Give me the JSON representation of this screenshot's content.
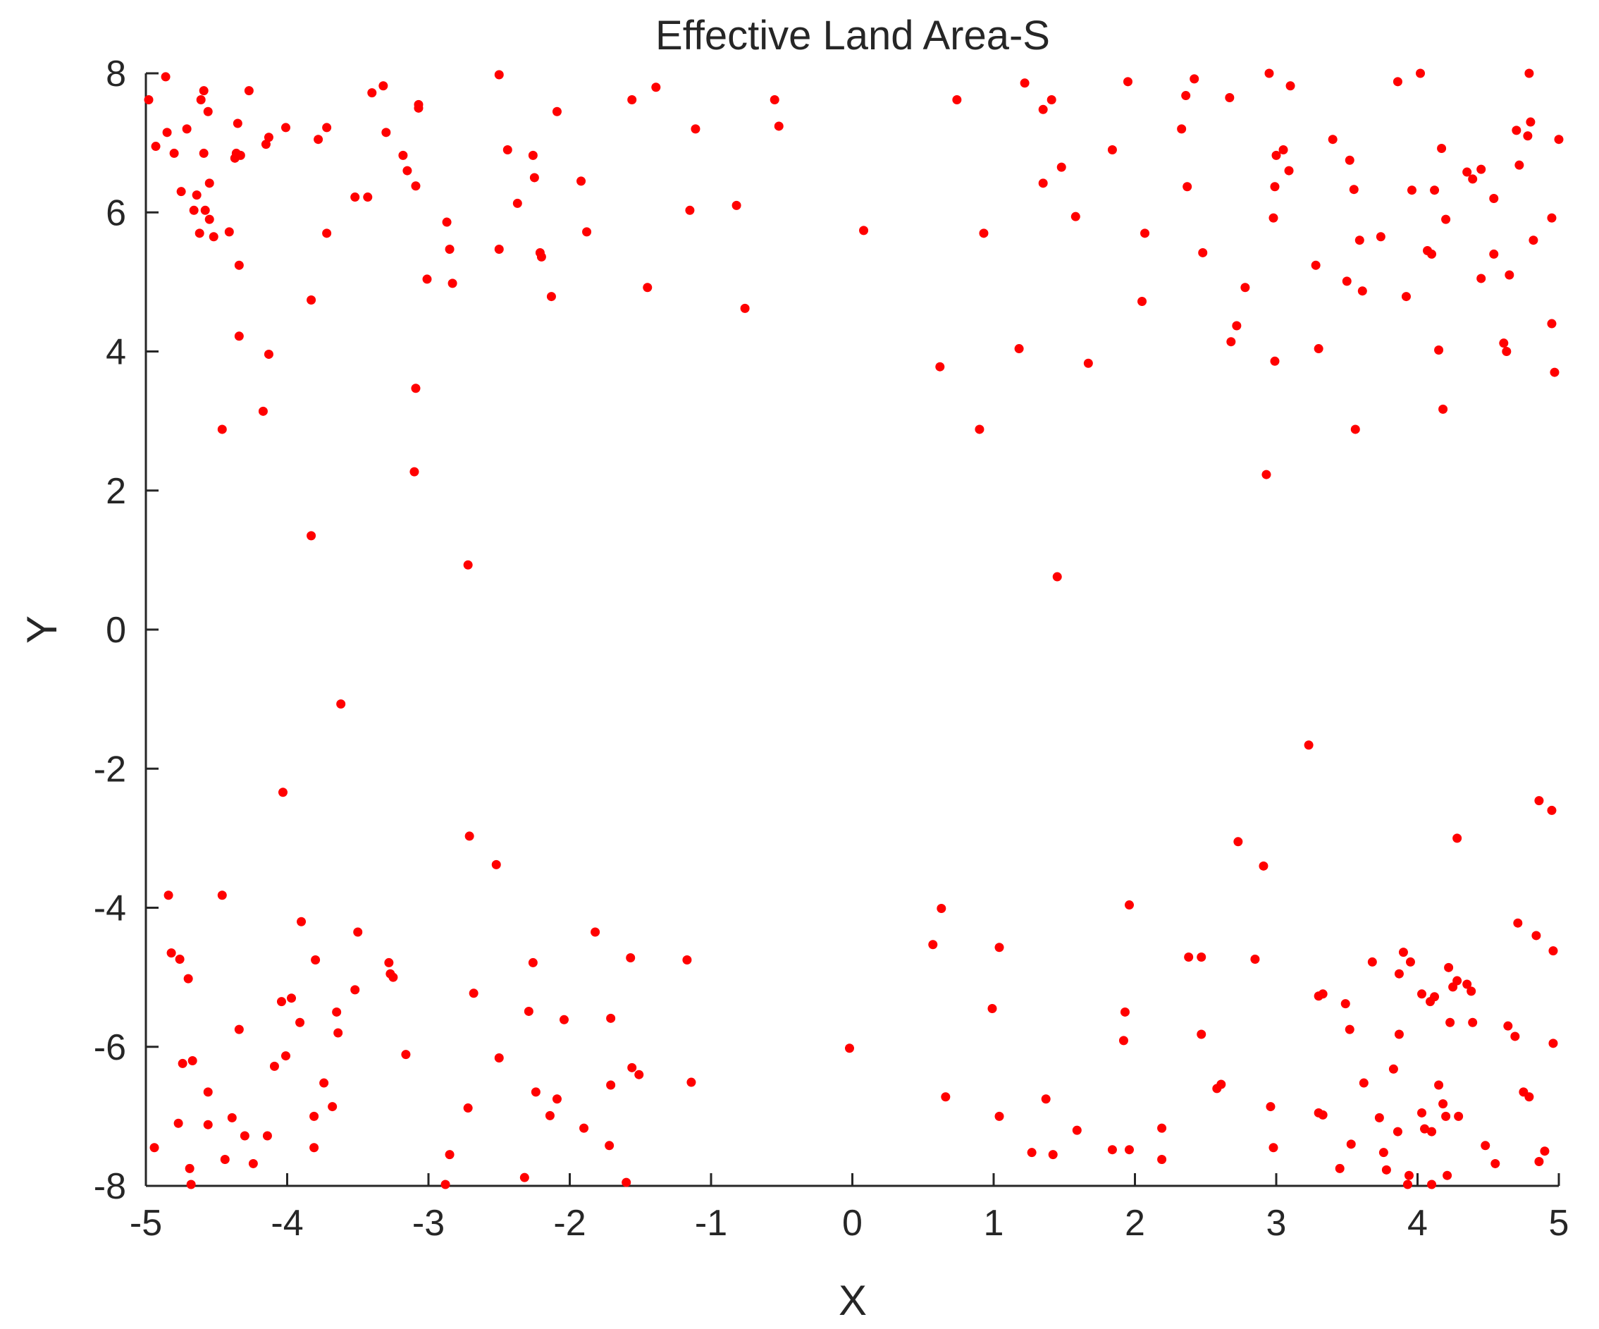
{
  "chart_data": {
    "type": "scatter",
    "title": "Effective Land Area-S",
    "xlabel": "X",
    "ylabel": "Y",
    "xlim": [
      -5,
      5
    ],
    "ylim": [
      -8,
      8
    ],
    "xticks": [
      -5,
      -4,
      -3,
      -2,
      -1,
      0,
      1,
      2,
      3,
      4,
      5
    ],
    "yticks": [
      -8,
      -6,
      -4,
      -2,
      0,
      2,
      4,
      6,
      8
    ],
    "grid": false,
    "legend": "none",
    "marker_color": "#ff0000",
    "series": [
      {
        "points": [
          [
            -4.98,
            7.62
          ],
          [
            -4.93,
            6.95
          ],
          [
            -4.86,
            7.95
          ],
          [
            -4.85,
            7.15
          ],
          [
            -4.8,
            6.85
          ],
          [
            -4.75,
            6.3
          ],
          [
            -4.71,
            7.2
          ],
          [
            -4.66,
            6.03
          ],
          [
            -4.64,
            6.25
          ],
          [
            -4.62,
            5.7
          ],
          [
            -4.61,
            7.62
          ],
          [
            -4.59,
            7.75
          ],
          [
            -4.59,
            6.85
          ],
          [
            -4.58,
            6.03
          ],
          [
            -4.56,
            7.45
          ],
          [
            -4.55,
            5.9
          ],
          [
            -4.55,
            6.42
          ],
          [
            -4.52,
            5.65
          ],
          [
            -4.46,
            2.88
          ],
          [
            -4.41,
            5.72
          ],
          [
            -4.37,
            6.78
          ],
          [
            -4.36,
            6.85
          ],
          [
            -4.35,
            7.28
          ],
          [
            -4.34,
            5.24
          ],
          [
            -4.34,
            4.22
          ],
          [
            -4.33,
            6.82
          ],
          [
            -4.27,
            7.75
          ],
          [
            -4.17,
            3.14
          ],
          [
            -4.15,
            6.98
          ],
          [
            -4.13,
            7.08
          ],
          [
            -4.13,
            3.96
          ],
          [
            -4.01,
            7.22
          ],
          [
            -3.83,
            4.74
          ],
          [
            -3.83,
            1.35
          ],
          [
            -3.78,
            7.05
          ],
          [
            -3.72,
            7.22
          ],
          [
            -3.72,
            5.7
          ],
          [
            -3.52,
            6.22
          ],
          [
            -3.43,
            6.22
          ],
          [
            -3.4,
            7.72
          ],
          [
            -3.32,
            7.82
          ],
          [
            -3.3,
            7.15
          ],
          [
            -3.18,
            6.82
          ],
          [
            -3.15,
            6.6
          ],
          [
            -3.09,
            6.38
          ],
          [
            -3.09,
            3.47
          ],
          [
            -3.07,
            7.5
          ],
          [
            -3.07,
            7.55
          ],
          [
            -3.1,
            2.27
          ],
          [
            -3.01,
            5.04
          ],
          [
            -2.87,
            5.86
          ],
          [
            -2.85,
            5.47
          ],
          [
            -2.83,
            4.98
          ],
          [
            -2.72,
            0.93
          ],
          [
            -2.5,
            7.98
          ],
          [
            -2.5,
            5.47
          ],
          [
            -2.44,
            6.9
          ],
          [
            -2.37,
            6.13
          ],
          [
            -2.26,
            6.82
          ],
          [
            -2.25,
            6.5
          ],
          [
            -2.21,
            5.42
          ],
          [
            -2.2,
            5.36
          ],
          [
            -2.13,
            4.79
          ],
          [
            -2.09,
            7.45
          ],
          [
            -1.92,
            6.45
          ],
          [
            -1.88,
            5.72
          ],
          [
            -1.56,
            7.62
          ],
          [
            -1.45,
            4.92
          ],
          [
            -1.39,
            7.8
          ],
          [
            -1.15,
            6.03
          ],
          [
            -1.11,
            7.2
          ],
          [
            -0.82,
            6.1
          ],
          [
            -0.76,
            4.62
          ],
          [
            -0.55,
            7.62
          ],
          [
            -0.52,
            7.24
          ],
          [
            0.08,
            5.74
          ],
          [
            0.62,
            3.78
          ],
          [
            0.74,
            7.62
          ],
          [
            0.9,
            2.88
          ],
          [
            0.93,
            5.7
          ],
          [
            1.18,
            4.04
          ],
          [
            1.22,
            7.86
          ],
          [
            1.35,
            6.42
          ],
          [
            1.35,
            7.48
          ],
          [
            1.41,
            7.62
          ],
          [
            1.45,
            0.76
          ],
          [
            1.48,
            6.65
          ],
          [
            1.58,
            5.94
          ],
          [
            1.67,
            3.83
          ],
          [
            1.84,
            6.9
          ],
          [
            1.95,
            7.88
          ],
          [
            2.05,
            4.72
          ],
          [
            2.07,
            5.7
          ],
          [
            2.33,
            7.2
          ],
          [
            2.36,
            7.68
          ],
          [
            2.37,
            6.37
          ],
          [
            2.42,
            7.92
          ],
          [
            2.48,
            5.42
          ],
          [
            2.67,
            7.65
          ],
          [
            2.68,
            4.14
          ],
          [
            2.72,
            4.37
          ],
          [
            2.78,
            4.92
          ],
          [
            2.93,
            2.23
          ],
          [
            2.95,
            8.0
          ],
          [
            2.98,
            5.92
          ],
          [
            2.99,
            6.37
          ],
          [
            2.99,
            3.86
          ],
          [
            3.0,
            6.82
          ],
          [
            3.05,
            6.9
          ],
          [
            3.09,
            6.6
          ],
          [
            3.1,
            7.82
          ],
          [
            3.28,
            5.24
          ],
          [
            3.3,
            4.04
          ],
          [
            3.4,
            7.05
          ],
          [
            3.5,
            5.01
          ],
          [
            3.52,
            6.75
          ],
          [
            3.55,
            6.33
          ],
          [
            3.56,
            2.88
          ],
          [
            3.59,
            5.6
          ],
          [
            3.61,
            4.87
          ],
          [
            3.74,
            5.65
          ],
          [
            3.86,
            7.88
          ],
          [
            3.92,
            4.79
          ],
          [
            3.96,
            6.32
          ],
          [
            4.02,
            8.0
          ],
          [
            4.07,
            5.45
          ],
          [
            4.1,
            5.4
          ],
          [
            4.12,
            6.32
          ],
          [
            4.15,
            4.02
          ],
          [
            4.17,
            6.92
          ],
          [
            4.18,
            3.17
          ],
          [
            4.2,
            5.9
          ],
          [
            4.35,
            6.58
          ],
          [
            4.39,
            6.48
          ],
          [
            4.45,
            6.62
          ],
          [
            4.45,
            5.05
          ],
          [
            4.54,
            6.2
          ],
          [
            4.54,
            5.4
          ],
          [
            4.61,
            4.12
          ],
          [
            4.63,
            4.0
          ],
          [
            4.65,
            5.1
          ],
          [
            4.7,
            7.18
          ],
          [
            4.72,
            6.68
          ],
          [
            4.78,
            7.1
          ],
          [
            4.79,
            8.0
          ],
          [
            4.8,
            7.3
          ],
          [
            4.82,
            5.6
          ],
          [
            4.95,
            5.92
          ],
          [
            4.95,
            4.4
          ],
          [
            4.97,
            3.7
          ],
          [
            5.0,
            7.05
          ],
          [
            -3.62,
            -1.07
          ],
          [
            -4.03,
            -2.34
          ],
          [
            -2.71,
            -2.97
          ],
          [
            -2.52,
            -3.38
          ],
          [
            3.23,
            -1.66
          ],
          [
            2.73,
            -3.05
          ],
          [
            2.91,
            -3.4
          ],
          [
            4.28,
            -3.0
          ],
          [
            4.86,
            -2.46
          ],
          [
            4.95,
            -2.6
          ],
          [
            -4.84,
            -3.82
          ],
          [
            -4.46,
            -3.82
          ],
          [
            -1.82,
            -4.35
          ],
          [
            -2.26,
            -4.79
          ],
          [
            -1.57,
            -4.72
          ],
          [
            -1.17,
            -4.75
          ],
          [
            -3.9,
            -4.2
          ],
          [
            -3.8,
            -4.75
          ],
          [
            -3.5,
            -4.35
          ],
          [
            -3.28,
            -4.79
          ],
          [
            -3.27,
            -4.95
          ],
          [
            -3.25,
            -5.0
          ],
          [
            -4.82,
            -4.65
          ],
          [
            -4.76,
            -4.74
          ],
          [
            -4.7,
            -5.02
          ],
          [
            -4.04,
            -5.35
          ],
          [
            -3.97,
            -5.3
          ],
          [
            -3.91,
            -5.65
          ],
          [
            -3.65,
            -5.5
          ],
          [
            -3.64,
            -5.8
          ],
          [
            -3.52,
            -5.18
          ],
          [
            -4.34,
            -5.75
          ],
          [
            -4.74,
            -6.24
          ],
          [
            -4.67,
            -6.2
          ],
          [
            -4.01,
            -6.13
          ],
          [
            -4.09,
            -6.28
          ],
          [
            -3.74,
            -6.52
          ],
          [
            -3.16,
            -6.11
          ],
          [
            -2.68,
            -5.23
          ],
          [
            -2.29,
            -5.49
          ],
          [
            -2.04,
            -5.61
          ],
          [
            -1.71,
            -5.59
          ],
          [
            -2.5,
            -6.16
          ],
          [
            -1.56,
            -6.3
          ],
          [
            -1.51,
            -6.4
          ],
          [
            -1.71,
            -6.55
          ],
          [
            -1.14,
            -6.51
          ],
          [
            -2.24,
            -6.65
          ],
          [
            -2.09,
            -6.75
          ],
          [
            -2.72,
            -6.88
          ],
          [
            -2.14,
            -6.99
          ],
          [
            -4.56,
            -6.65
          ],
          [
            -4.77,
            -7.1
          ],
          [
            -4.56,
            -7.12
          ],
          [
            -4.39,
            -7.02
          ],
          [
            -3.68,
            -6.86
          ],
          [
            -3.81,
            -7.0
          ],
          [
            -4.3,
            -7.28
          ],
          [
            -4.14,
            -7.28
          ],
          [
            -4.94,
            -7.45
          ],
          [
            -3.81,
            -7.45
          ],
          [
            -4.44,
            -7.62
          ],
          [
            -4.24,
            -7.68
          ],
          [
            -4.69,
            -7.75
          ],
          [
            -4.68,
            -7.98
          ],
          [
            -2.85,
            -7.55
          ],
          [
            -2.88,
            -7.98
          ],
          [
            -2.32,
            -7.88
          ],
          [
            -1.9,
            -7.17
          ],
          [
            -1.72,
            -7.42
          ],
          [
            -1.6,
            -7.95
          ],
          [
            -0.02,
            -6.02
          ],
          [
            0.57,
            -4.53
          ],
          [
            0.63,
            -4.01
          ],
          [
            0.66,
            -6.72
          ],
          [
            0.99,
            -5.45
          ],
          [
            1.04,
            -4.57
          ],
          [
            1.04,
            -7.0
          ],
          [
            1.27,
            -7.52
          ],
          [
            1.37,
            -6.75
          ],
          [
            1.42,
            -7.55
          ],
          [
            1.59,
            -7.2
          ],
          [
            1.84,
            -7.48
          ],
          [
            1.92,
            -5.91
          ],
          [
            1.93,
            -5.5
          ],
          [
            1.96,
            -3.96
          ],
          [
            1.96,
            -7.48
          ],
          [
            2.19,
            -7.17
          ],
          [
            2.19,
            -7.62
          ],
          [
            2.38,
            -4.71
          ],
          [
            2.47,
            -4.71
          ],
          [
            2.47,
            -5.82
          ],
          [
            2.58,
            -6.6
          ],
          [
            2.61,
            -6.54
          ],
          [
            2.85,
            -4.74
          ],
          [
            2.96,
            -6.86
          ],
          [
            2.98,
            -7.45
          ],
          [
            3.3,
            -5.27
          ],
          [
            3.33,
            -5.24
          ],
          [
            3.3,
            -6.95
          ],
          [
            3.33,
            -6.98
          ],
          [
            3.45,
            -7.75
          ],
          [
            3.49,
            -5.38
          ],
          [
            3.52,
            -5.75
          ],
          [
            3.53,
            -7.4
          ],
          [
            3.62,
            -6.52
          ],
          [
            3.68,
            -4.78
          ],
          [
            3.73,
            -7.02
          ],
          [
            3.76,
            -7.52
          ],
          [
            3.78,
            -7.77
          ],
          [
            3.83,
            -6.32
          ],
          [
            3.86,
            -7.22
          ],
          [
            3.87,
            -5.82
          ],
          [
            3.87,
            -4.95
          ],
          [
            3.9,
            -4.64
          ],
          [
            3.95,
            -4.78
          ],
          [
            3.93,
            -7.98
          ],
          [
            3.94,
            -7.85
          ],
          [
            4.03,
            -6.95
          ],
          [
            4.03,
            -5.24
          ],
          [
            4.05,
            -7.18
          ],
          [
            4.09,
            -5.35
          ],
          [
            4.1,
            -7.22
          ],
          [
            4.12,
            -5.28
          ],
          [
            4.15,
            -6.55
          ],
          [
            4.18,
            -6.82
          ],
          [
            4.2,
            -7.0
          ],
          [
            4.21,
            -7.85
          ],
          [
            4.22,
            -4.86
          ],
          [
            4.23,
            -5.65
          ],
          [
            4.25,
            -5.14
          ],
          [
            4.28,
            -5.05
          ],
          [
            4.29,
            -7.0
          ],
          [
            4.35,
            -5.1
          ],
          [
            4.38,
            -5.2
          ],
          [
            4.39,
            -5.65
          ],
          [
            4.48,
            -7.42
          ],
          [
            4.55,
            -7.68
          ],
          [
            4.64,
            -5.7
          ],
          [
            4.69,
            -5.85
          ],
          [
            4.71,
            -4.22
          ],
          [
            4.75,
            -6.65
          ],
          [
            4.79,
            -6.72
          ],
          [
            4.84,
            -4.4
          ],
          [
            4.86,
            -7.65
          ],
          [
            4.9,
            -7.5
          ],
          [
            4.96,
            -4.62
          ],
          [
            4.96,
            -5.95
          ],
          [
            4.1,
            -7.98
          ]
        ]
      }
    ]
  }
}
